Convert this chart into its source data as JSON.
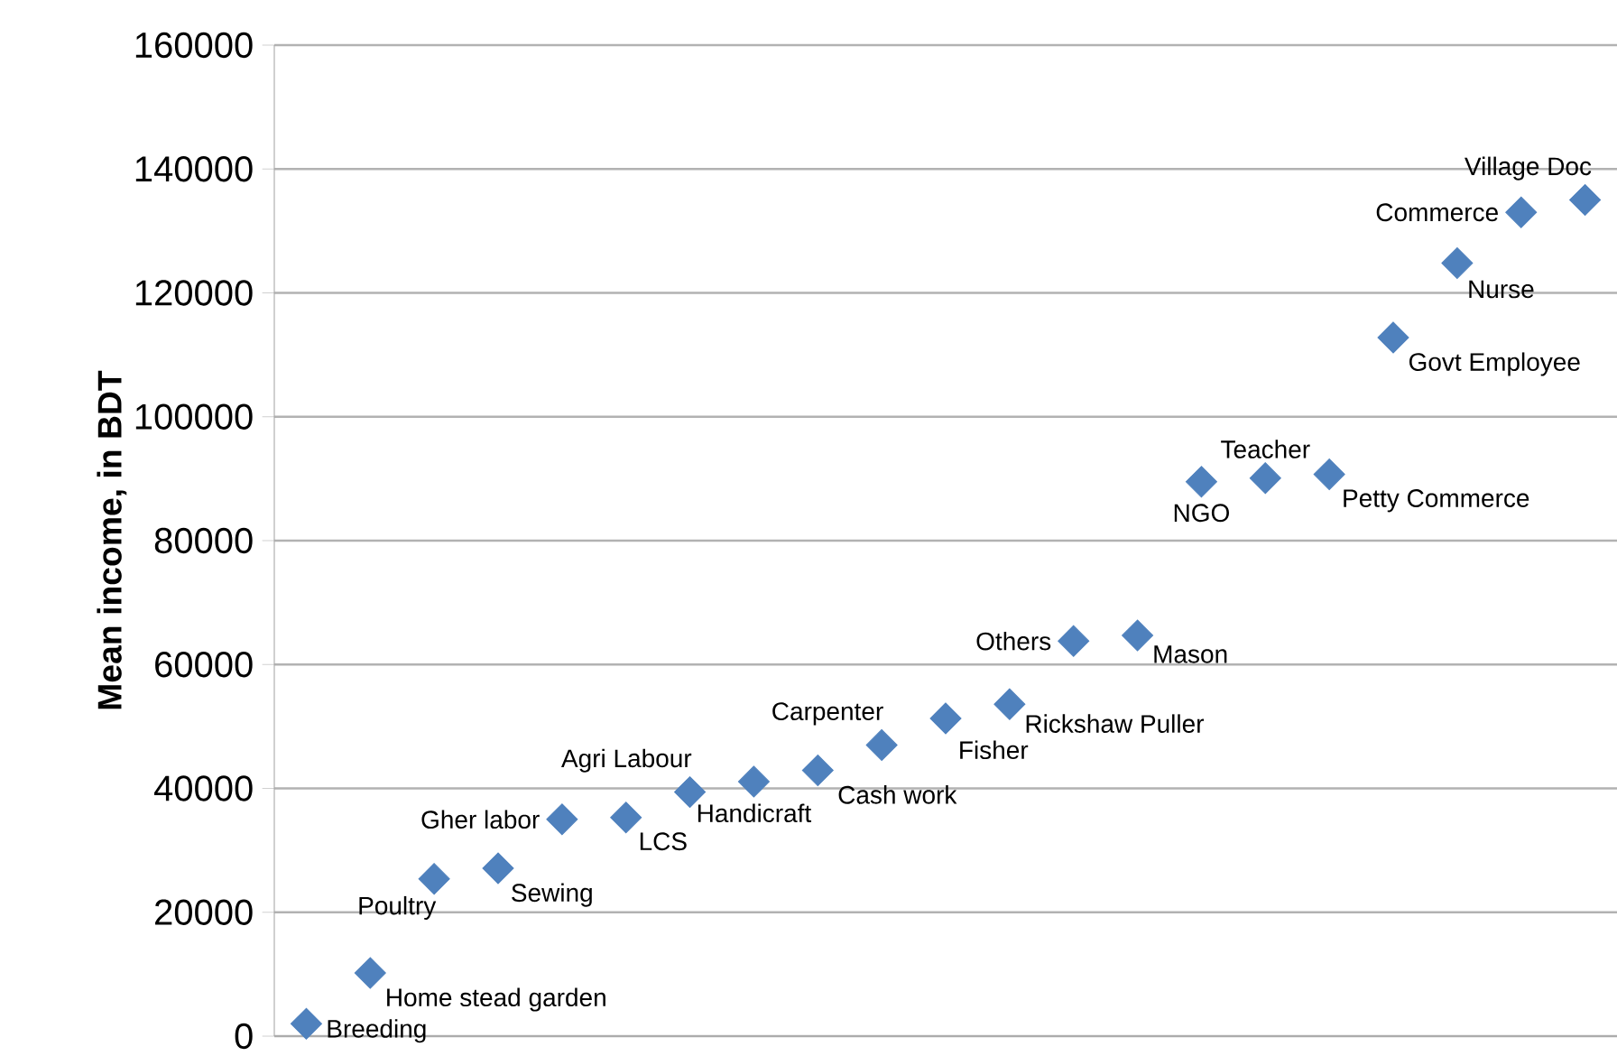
{
  "chart_data": {
    "type": "scatter",
    "ylabel": "Mean income, in BDT",
    "categories": [
      null,
      null,
      null,
      null,
      null,
      null,
      null,
      null,
      null,
      null,
      null,
      null,
      null,
      null,
      null,
      null,
      null,
      null,
      null,
      null,
      null
    ],
    "values": [
      2000,
      10200,
      25400,
      27100,
      35000,
      35300,
      39400,
      41100,
      42900,
      47000,
      51300,
      53600,
      63800,
      64700,
      89500,
      90100,
      90700,
      112800,
      124800,
      133000,
      135000
    ],
    "value_labels": [
      "Breeding",
      "Home stead garden",
      "Poultry",
      "Sewing",
      "Gher labor",
      "LCS",
      "Agri Labour",
      "Handicraft",
      "Cash work",
      "Carpenter",
      "Fisher",
      "Rickshaw Puller",
      "Others",
      "Mason",
      "NGO",
      "Teacher",
      "Petty Commerce",
      "Govt Employee",
      "Nurse",
      "Commerce",
      "Village Doc"
    ],
    "color": "#4f81bd",
    "marker": "diamond",
    "ylim": [
      0,
      160000
    ],
    "yticks": [
      0,
      20000,
      40000,
      60000,
      80000,
      100000,
      120000,
      140000,
      160000
    ],
    "grid": "y"
  }
}
